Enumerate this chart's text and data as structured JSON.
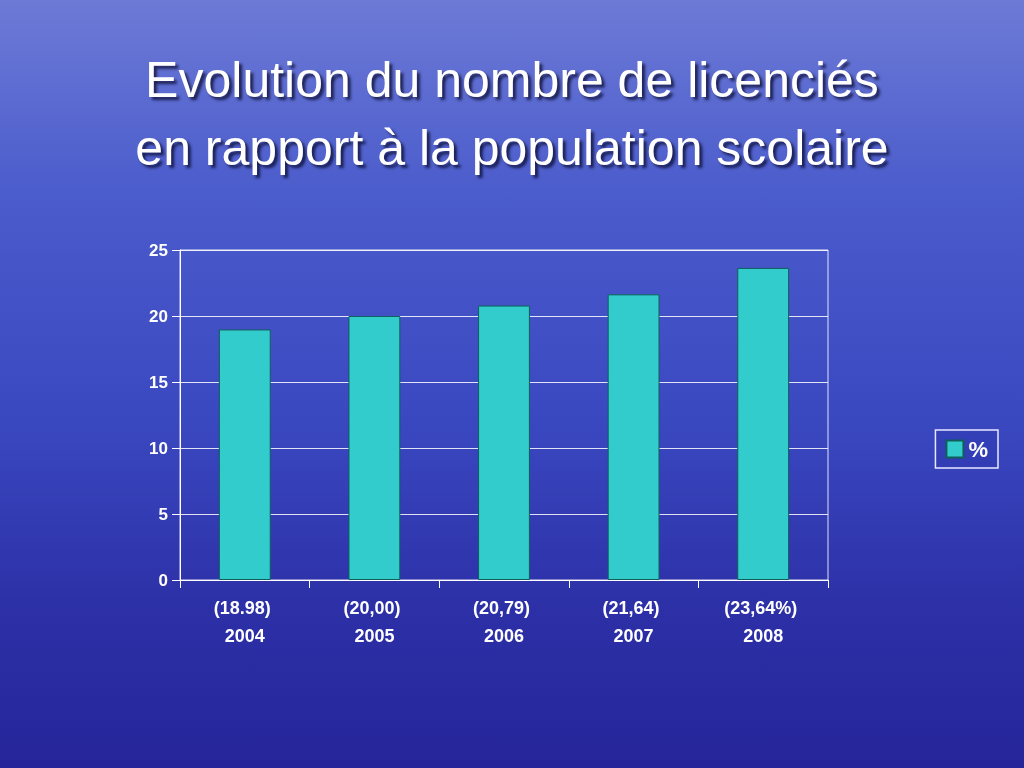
{
  "chart_data": {
    "type": "bar",
    "title": "Evolution du nombre de licenciés en rapport à la population scolaire",
    "categories": [
      "(18.98) 2004",
      "(20,00) 2005",
      "(20,79) 2006",
      "(21,64) 2007",
      "(23,64%) 2008"
    ],
    "series": [
      {
        "name": "%",
        "color": "#33cccc",
        "values": [
          18.98,
          20.0,
          20.79,
          21.64,
          23.64
        ]
      }
    ],
    "ylim": [
      0,
      25
    ],
    "yticks": [
      0,
      5,
      10,
      15,
      20,
      25
    ],
    "grid": "y",
    "legend": "right"
  }
}
